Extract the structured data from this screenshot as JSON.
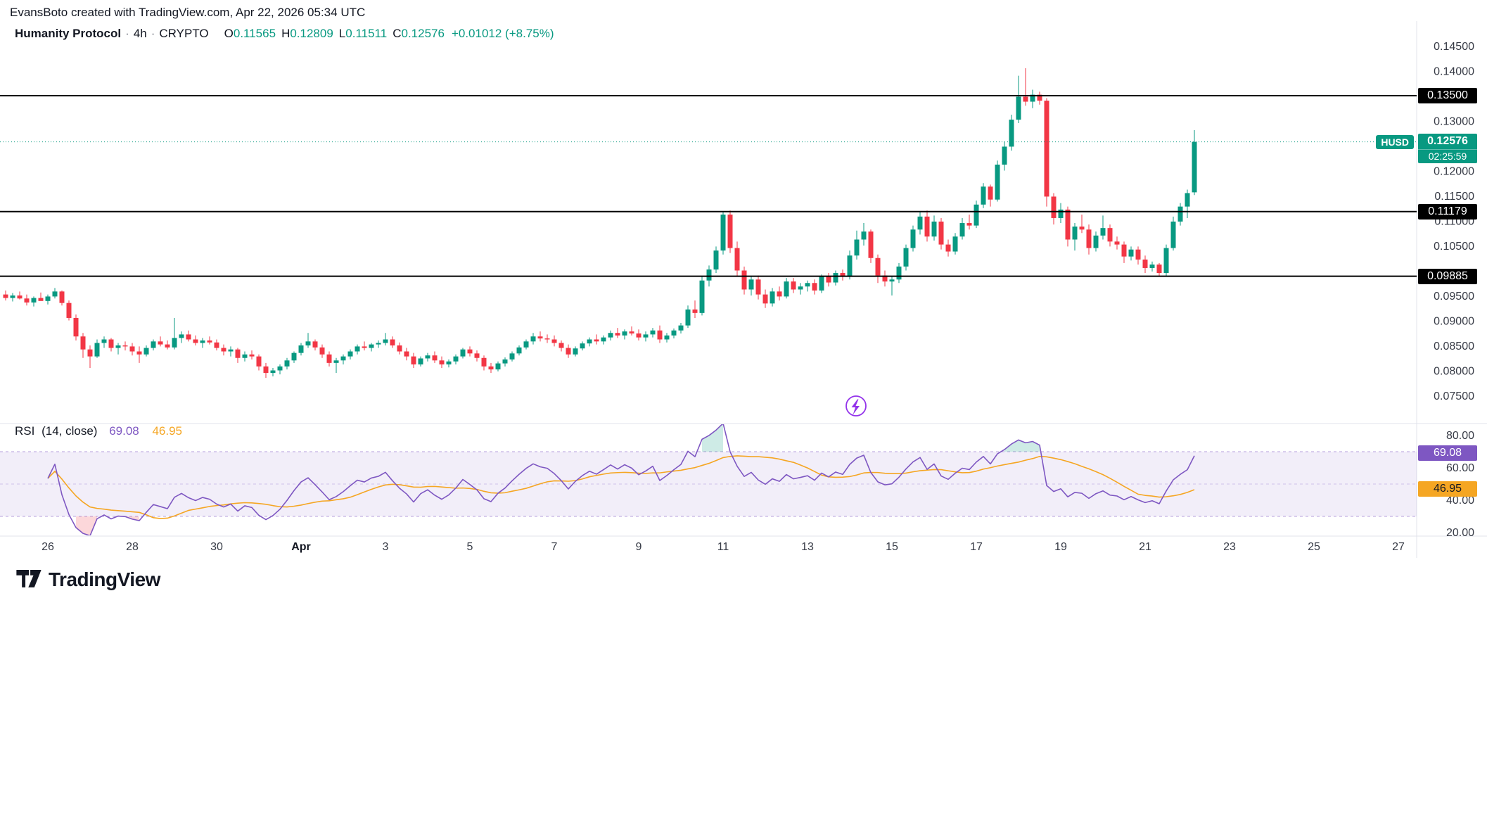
{
  "attribution": "EvansBoto created with TradingView.com, Apr 22, 2026 05:34 UTC",
  "legend": {
    "symbol": "Humanity Protocol",
    "separator": "·",
    "interval": "4h",
    "exchange": "CRYPTO",
    "ohlc": [
      {
        "k": "O",
        "v": "0.11565"
      },
      {
        "k": "H",
        "v": "0.12809"
      },
      {
        "k": "L",
        "v": "0.11511"
      },
      {
        "k": "C",
        "v": "0.12576"
      }
    ],
    "change": "+0.01012 (+8.75%)"
  },
  "rsi_legend": {
    "title": "RSI",
    "params": "(14, close)",
    "value_label": "69.08",
    "ma_value_label": "46.95"
  },
  "logo_text": "TradingView",
  "colors": {
    "up": "#089981",
    "down": "#f23645",
    "axis_text": "#363a45",
    "muted_text": "#787b86",
    "separator": "#e0e3eb",
    "level_line": "#000000",
    "last_price_line": "#089981",
    "rsi_line": "#7e57c2",
    "rsi_ma": "#f5a623",
    "rsi_band_line": "rgba(126,87,194,0.55)",
    "rsi_mid_line": "rgba(126,87,194,0.30)",
    "rsi_band_fill": "rgba(126,87,194,0.10)",
    "rsi_over_fill": "rgba(8,153,129,0.20)",
    "rsi_under_fill": "rgba(242,54,69,0.20)",
    "lightning": "#9333ea",
    "badge_black": "#000000",
    "badge_green": "#089981",
    "badge_purple": "#7e57c2",
    "badge_amber": "#f5a623"
  },
  "chart_data": {
    "type": "candlestick",
    "symbol": "Humanity Protocol",
    "ticker": "HUSD",
    "interval": "4h",
    "exchange": "CRYPTO",
    "ohlc_current": {
      "open": 0.11565,
      "high": 0.12809,
      "low": 0.11511,
      "close": 0.12576,
      "change": 0.01012,
      "change_pct": 8.75
    },
    "levels": [
      {
        "price": 0.135,
        "label": "0.13500"
      },
      {
        "price": 0.11179,
        "label": "0.11179"
      },
      {
        "price": 0.09885,
        "label": "0.09885"
      }
    ],
    "last": {
      "price": 0.12576,
      "label": "0.12576",
      "countdown": "02:25:59",
      "ticker": "HUSD"
    },
    "price_axis": {
      "ticks": [
        0.145,
        0.14,
        0.13,
        0.12,
        0.115,
        0.11,
        0.105,
        0.095,
        0.09,
        0.085,
        0.08,
        0.075
      ]
    },
    "time_axis": {
      "labels": [
        "26",
        "28",
        "30",
        "Apr",
        "3",
        "5",
        "7",
        "9",
        "11",
        "13",
        "15",
        "17",
        "19",
        "21",
        "23",
        "25",
        "27"
      ],
      "month_label": "Apr"
    },
    "indicator": {
      "name": "RSI",
      "length": 14,
      "source": "close",
      "last_value": 69.08,
      "ma_type": "SMA",
      "ma_length": 14,
      "ma_last_value": 46.95,
      "overbought": 70,
      "oversold": 30,
      "midline": 50,
      "axis_ticks": [
        80,
        60,
        40,
        20
      ]
    },
    "candles": [
      [
        0.0952,
        0.096,
        0.094,
        0.0945
      ],
      [
        0.0945,
        0.0955,
        0.0938,
        0.095
      ],
      [
        0.095,
        0.0958,
        0.0942,
        0.0944
      ],
      [
        0.0944,
        0.0952,
        0.093,
        0.0936
      ],
      [
        0.0936,
        0.0948,
        0.0928,
        0.0945
      ],
      [
        0.0945,
        0.0956,
        0.094,
        0.0939
      ],
      [
        0.0939,
        0.0952,
        0.0932,
        0.0948
      ],
      [
        0.0948,
        0.0965,
        0.0944,
        0.0958
      ],
      [
        0.0958,
        0.096,
        0.093,
        0.0935
      ],
      [
        0.0935,
        0.094,
        0.09,
        0.0905
      ],
      [
        0.0905,
        0.0912,
        0.086,
        0.0868
      ],
      [
        0.0868,
        0.0875,
        0.0825,
        0.0842
      ],
      [
        0.0842,
        0.085,
        0.0805,
        0.0828
      ],
      [
        0.0828,
        0.0862,
        0.0825,
        0.0855
      ],
      [
        0.0855,
        0.0868,
        0.0845,
        0.0862
      ],
      [
        0.0862,
        0.0865,
        0.0838,
        0.0845
      ],
      [
        0.0845,
        0.0855,
        0.0832,
        0.085
      ],
      [
        0.085,
        0.0858,
        0.084,
        0.0848
      ],
      [
        0.0848,
        0.0855,
        0.083,
        0.0838
      ],
      [
        0.0838,
        0.0848,
        0.0815,
        0.0832
      ],
      [
        0.0832,
        0.085,
        0.0828,
        0.0845
      ],
      [
        0.0845,
        0.0862,
        0.084,
        0.0858
      ],
      [
        0.0858,
        0.0868,
        0.0848,
        0.0852
      ],
      [
        0.0852,
        0.086,
        0.0842,
        0.0846
      ],
      [
        0.0846,
        0.0905,
        0.0842,
        0.0865
      ],
      [
        0.0865,
        0.0878,
        0.0855,
        0.0872
      ],
      [
        0.0872,
        0.088,
        0.0858,
        0.0862
      ],
      [
        0.0862,
        0.087,
        0.085,
        0.0855
      ],
      [
        0.0855,
        0.0865,
        0.0845,
        0.086
      ],
      [
        0.086,
        0.0868,
        0.0852,
        0.0856
      ],
      [
        0.0856,
        0.0862,
        0.084,
        0.0845
      ],
      [
        0.0845,
        0.0852,
        0.083,
        0.0838
      ],
      [
        0.0838,
        0.0848,
        0.0828,
        0.0842
      ],
      [
        0.0842,
        0.0845,
        0.0815,
        0.0825
      ],
      [
        0.0825,
        0.0838,
        0.0818,
        0.0832
      ],
      [
        0.0832,
        0.084,
        0.0822,
        0.0828
      ],
      [
        0.0828,
        0.0832,
        0.08,
        0.0808
      ],
      [
        0.0808,
        0.0815,
        0.0785,
        0.0795
      ],
      [
        0.0795,
        0.0805,
        0.0788,
        0.08
      ],
      [
        0.08,
        0.0812,
        0.0792,
        0.0808
      ],
      [
        0.0808,
        0.0825,
        0.0802,
        0.082
      ],
      [
        0.082,
        0.0838,
        0.0815,
        0.0835
      ],
      [
        0.0835,
        0.0855,
        0.083,
        0.085
      ],
      [
        0.085,
        0.0875,
        0.0845,
        0.0858
      ],
      [
        0.0858,
        0.0862,
        0.084,
        0.0846
      ],
      [
        0.0846,
        0.0852,
        0.0825,
        0.0832
      ],
      [
        0.0832,
        0.0838,
        0.0808,
        0.0815
      ],
      [
        0.0815,
        0.0825,
        0.0795,
        0.082
      ],
      [
        0.082,
        0.0832,
        0.0812,
        0.0828
      ],
      [
        0.0828,
        0.0842,
        0.0822,
        0.0838
      ],
      [
        0.0838,
        0.0852,
        0.0832,
        0.0848
      ],
      [
        0.0848,
        0.0858,
        0.084,
        0.0845
      ],
      [
        0.0845,
        0.0855,
        0.0838,
        0.0852
      ],
      [
        0.0852,
        0.086,
        0.0845,
        0.0855
      ],
      [
        0.0855,
        0.0875,
        0.085,
        0.0862
      ],
      [
        0.0862,
        0.0868,
        0.0845,
        0.085
      ],
      [
        0.085,
        0.0856,
        0.0832,
        0.0838
      ],
      [
        0.0838,
        0.0845,
        0.082,
        0.0828
      ],
      [
        0.0828,
        0.0835,
        0.0805,
        0.0812
      ],
      [
        0.0812,
        0.0828,
        0.0808,
        0.0824
      ],
      [
        0.0824,
        0.0835,
        0.0818,
        0.083
      ],
      [
        0.083,
        0.0838,
        0.0815,
        0.082
      ],
      [
        0.082,
        0.0828,
        0.0805,
        0.0812
      ],
      [
        0.0812,
        0.0822,
        0.0806,
        0.0818
      ],
      [
        0.0818,
        0.0832,
        0.0812,
        0.0828
      ],
      [
        0.0828,
        0.0845,
        0.0824,
        0.0842
      ],
      [
        0.0842,
        0.0848,
        0.0828,
        0.0834
      ],
      [
        0.0834,
        0.084,
        0.0818,
        0.0825
      ],
      [
        0.0825,
        0.083,
        0.08,
        0.0808
      ],
      [
        0.0808,
        0.0815,
        0.0795,
        0.0802
      ],
      [
        0.0802,
        0.0818,
        0.0798,
        0.0814
      ],
      [
        0.0814,
        0.0826,
        0.0808,
        0.0822
      ],
      [
        0.0822,
        0.0838,
        0.0818,
        0.0834
      ],
      [
        0.0834,
        0.085,
        0.083,
        0.0846
      ],
      [
        0.0846,
        0.0862,
        0.0842,
        0.0858
      ],
      [
        0.0858,
        0.0875,
        0.0852,
        0.0868
      ],
      [
        0.0868,
        0.0878,
        0.0858,
        0.0864
      ],
      [
        0.0864,
        0.0872,
        0.0855,
        0.0862
      ],
      [
        0.0862,
        0.087,
        0.0848,
        0.0855
      ],
      [
        0.0855,
        0.086,
        0.0838,
        0.0845
      ],
      [
        0.0845,
        0.0852,
        0.0825,
        0.0832
      ],
      [
        0.0832,
        0.0848,
        0.0828,
        0.0844
      ],
      [
        0.0844,
        0.0858,
        0.084,
        0.0854
      ],
      [
        0.0854,
        0.0866,
        0.0848,
        0.0862
      ],
      [
        0.0862,
        0.0872,
        0.0852,
        0.0858
      ],
      [
        0.0858,
        0.087,
        0.0852,
        0.0866
      ],
      [
        0.0866,
        0.088,
        0.086,
        0.0875
      ],
      [
        0.0875,
        0.0885,
        0.0865,
        0.087
      ],
      [
        0.087,
        0.0882,
        0.0862,
        0.0878
      ],
      [
        0.0878,
        0.0888,
        0.087,
        0.0874
      ],
      [
        0.0874,
        0.0882,
        0.086,
        0.0866
      ],
      [
        0.0866,
        0.0878,
        0.0858,
        0.0872
      ],
      [
        0.0872,
        0.0885,
        0.0866,
        0.088
      ],
      [
        0.088,
        0.089,
        0.0855,
        0.0862
      ],
      [
        0.0862,
        0.0875,
        0.0856,
        0.087
      ],
      [
        0.087,
        0.0884,
        0.0864,
        0.088
      ],
      [
        0.088,
        0.0895,
        0.0874,
        0.089
      ],
      [
        0.089,
        0.093,
        0.0885,
        0.0922
      ],
      [
        0.0922,
        0.094,
        0.0905,
        0.0915
      ],
      [
        0.0915,
        0.0988,
        0.091,
        0.098
      ],
      [
        0.098,
        0.101,
        0.0968,
        0.1002
      ],
      [
        0.1002,
        0.1048,
        0.0995,
        0.104
      ],
      [
        0.104,
        0.1118,
        0.1032,
        0.1112
      ],
      [
        0.1112,
        0.112,
        0.1035,
        0.1045
      ],
      [
        0.1045,
        0.1058,
        0.0988,
        0.1
      ],
      [
        0.1,
        0.1008,
        0.0952,
        0.0962
      ],
      [
        0.0962,
        0.0988,
        0.095,
        0.0982
      ],
      [
        0.0982,
        0.099,
        0.0942,
        0.0952
      ],
      [
        0.0952,
        0.0962,
        0.0925,
        0.0934
      ],
      [
        0.0934,
        0.0965,
        0.0928,
        0.0958
      ],
      [
        0.0958,
        0.0968,
        0.094,
        0.0948
      ],
      [
        0.0948,
        0.0985,
        0.0944,
        0.0978
      ],
      [
        0.0978,
        0.0985,
        0.0955,
        0.0962
      ],
      [
        0.0962,
        0.0975,
        0.0952,
        0.0968
      ],
      [
        0.0968,
        0.098,
        0.0958,
        0.0975
      ],
      [
        0.0975,
        0.0982,
        0.0952,
        0.096
      ],
      [
        0.096,
        0.0992,
        0.0955,
        0.0988
      ],
      [
        0.0988,
        0.0995,
        0.0968,
        0.0976
      ],
      [
        0.0976,
        0.1,
        0.097,
        0.0995
      ],
      [
        0.0995,
        0.1002,
        0.098,
        0.0988
      ],
      [
        0.0988,
        0.104,
        0.0982,
        0.103
      ],
      [
        0.103,
        0.108,
        0.1022,
        0.1062
      ],
      [
        0.1062,
        0.1095,
        0.105,
        0.1078
      ],
      [
        0.1078,
        0.1082,
        0.1015,
        0.1025
      ],
      [
        0.1025,
        0.1032,
        0.0975,
        0.099
      ],
      [
        0.099,
        0.1,
        0.0968,
        0.0978
      ],
      [
        0.0978,
        0.0988,
        0.095,
        0.0982
      ],
      [
        0.0982,
        0.1015,
        0.0975,
        0.1008
      ],
      [
        0.1008,
        0.1052,
        0.1,
        0.1045
      ],
      [
        0.1045,
        0.109,
        0.1038,
        0.1082
      ],
      [
        0.1082,
        0.1118,
        0.1072,
        0.1108
      ],
      [
        0.1108,
        0.112,
        0.1058,
        0.1068
      ],
      [
        0.1068,
        0.111,
        0.106,
        0.1098
      ],
      [
        0.1098,
        0.1105,
        0.1042,
        0.1052
      ],
      [
        0.1052,
        0.1062,
        0.1028,
        0.1038
      ],
      [
        0.1038,
        0.1075,
        0.1032,
        0.1068
      ],
      [
        0.1068,
        0.1105,
        0.1062,
        0.1095
      ],
      [
        0.1095,
        0.1112,
        0.1082,
        0.109
      ],
      [
        0.109,
        0.114,
        0.1085,
        0.1132
      ],
      [
        0.1132,
        0.1175,
        0.1125,
        0.1168
      ],
      [
        0.1168,
        0.1172,
        0.1128,
        0.1142
      ],
      [
        0.1142,
        0.122,
        0.1138,
        0.1212
      ],
      [
        0.1212,
        0.1258,
        0.12,
        0.1248
      ],
      [
        0.1248,
        0.1312,
        0.124,
        0.1302
      ],
      [
        0.1302,
        0.139,
        0.1295,
        0.1348
      ],
      [
        0.1348,
        0.1405,
        0.133,
        0.1338
      ],
      [
        0.1338,
        0.1362,
        0.1325,
        0.1352
      ],
      [
        0.1352,
        0.1358,
        0.1332,
        0.134
      ],
      [
        0.134,
        0.1345,
        0.1128,
        0.1148
      ],
      [
        0.1148,
        0.1155,
        0.1092,
        0.1105
      ],
      [
        0.1105,
        0.1135,
        0.1095,
        0.1122
      ],
      [
        0.1122,
        0.1128,
        0.1048,
        0.1062
      ],
      [
        0.1062,
        0.1095,
        0.104,
        0.1088
      ],
      [
        0.1088,
        0.1112,
        0.1075,
        0.1082
      ],
      [
        0.1082,
        0.1092,
        0.1032,
        0.1045
      ],
      [
        0.1045,
        0.1078,
        0.1038,
        0.107
      ],
      [
        0.107,
        0.111,
        0.1062,
        0.1085
      ],
      [
        0.1085,
        0.1092,
        0.1048,
        0.1058
      ],
      [
        0.1058,
        0.1068,
        0.1042,
        0.1052
      ],
      [
        0.1052,
        0.1058,
        0.1015,
        0.1028
      ],
      [
        0.1028,
        0.1048,
        0.102,
        0.1042
      ],
      [
        0.1042,
        0.1048,
        0.1012,
        0.1022
      ],
      [
        0.1022,
        0.103,
        0.0995,
        0.1005
      ],
      [
        0.1005,
        0.1018,
        0.0998,
        0.1012
      ],
      [
        0.1012,
        0.1015,
        0.0989,
        0.0995
      ],
      [
        0.0995,
        0.1052,
        0.0989,
        0.1045
      ],
      [
        0.1045,
        0.1108,
        0.104,
        0.1098
      ],
      [
        0.1098,
        0.1135,
        0.109,
        0.1128
      ],
      [
        0.1128,
        0.1162,
        0.1105,
        0.1155
      ],
      [
        0.11565,
        0.12809,
        0.11511,
        0.12576
      ]
    ]
  }
}
